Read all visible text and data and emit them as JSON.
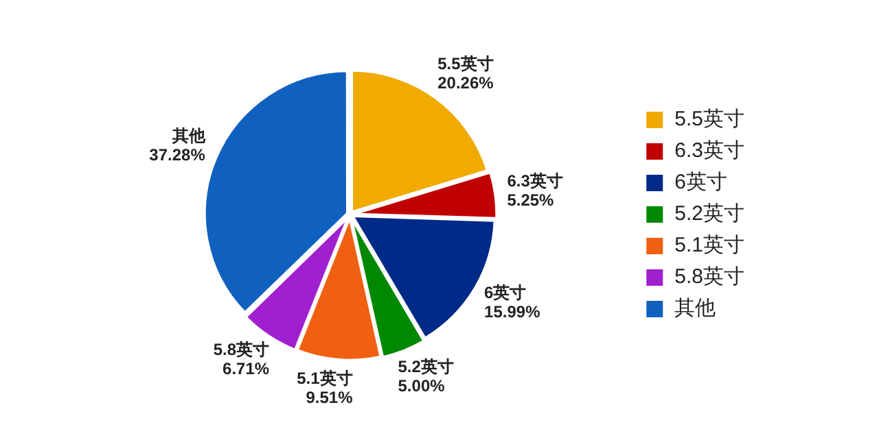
{
  "chart_data": {
    "type": "pie",
    "categories": [
      "5.5英寸",
      "6.3英寸",
      "6英寸",
      "5.2英寸",
      "5.1英寸",
      "5.8英寸",
      "其他"
    ],
    "values": [
      20.26,
      5.25,
      15.99,
      5.0,
      9.51,
      6.71,
      37.28
    ],
    "value_labels": [
      "20.26%",
      "5.25%",
      "15.99%",
      "5.00%",
      "9.51%",
      "6.71%",
      "37.28%"
    ],
    "colors": [
      "#f0aa00",
      "#c00000",
      "#002a88",
      "#008800",
      "#f06010",
      "#a020d0",
      "#1060c0"
    ],
    "legend": "right"
  }
}
